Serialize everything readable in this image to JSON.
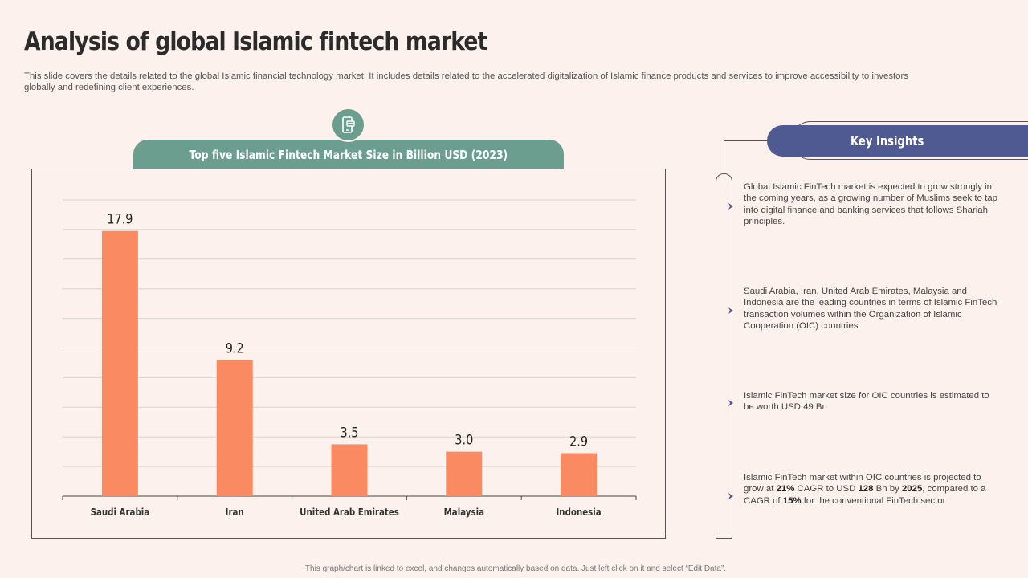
{
  "title": "Analysis of global Islamic fintech market",
  "subtitle": "This slide covers the details related to the global Islamic financial technology market. It includes details related to the accelerated digitalization of Islamic finance products and services to improve accessibility to investors globally and redefining client experiences.",
  "chart_icon": "mobile-payment-icon",
  "footer": "This graph/chart is linked to excel, and changes automatically based on data. Just left click on it and select “Edit Data”.",
  "colors": {
    "bar": "#fa8a62",
    "header": "#6b9e8f",
    "insights_header": "#4f5a93",
    "background": "#fcf1ec"
  },
  "chart_data": {
    "type": "bar",
    "title": "Top five Islamic Fintech Market Size in Billion USD (2023)",
    "categories": [
      "Saudi Arabia",
      "Iran",
      "United Arab Emirates",
      "Malaysia",
      "Indonesia"
    ],
    "values": [
      17.9,
      9.2,
      3.5,
      3.0,
      2.9
    ],
    "data_labels": [
      "17.9",
      "9.2",
      "3.5",
      "3.0",
      "2.9"
    ],
    "xlabel": "",
    "ylabel": "",
    "ylim": [
      0,
      20
    ],
    "grid": true,
    "legend": "none"
  },
  "insights": {
    "title": "Key Insights",
    "items": [
      {
        "parts": [
          {
            "text": "Global Islamic FinTech market is expected to grow strongly in the coming years, as a growing number of Muslims seek to tap into digital finance and banking services that follows Shariah principles."
          }
        ]
      },
      {
        "parts": [
          {
            "text": "Saudi Arabia, Iran, United Arab Emirates, Malaysia and Indonesia are the leading countries in terms of Islamic FinTech transaction volumes within the Organization of Islamic Cooperation (OIC) countries"
          }
        ]
      },
      {
        "parts": [
          {
            "text": "Islamic FinTech market size for OIC countries is estimated to be worth USD 49 Bn"
          }
        ]
      },
      {
        "parts": [
          {
            "text": "Islamic FinTech market within OIC countries is projected to grow at "
          },
          {
            "text": "21%",
            "bold": true
          },
          {
            "text": " CAGR to USD "
          },
          {
            "text": "128",
            "bold": true
          },
          {
            "text": " Bn by "
          },
          {
            "text": "2025",
            "bold": true
          },
          {
            "text": ", compared to a CAGR of "
          },
          {
            "text": "15%",
            "bold": true
          },
          {
            "text": " for the conventional FinTech sector"
          }
        ]
      }
    ]
  }
}
